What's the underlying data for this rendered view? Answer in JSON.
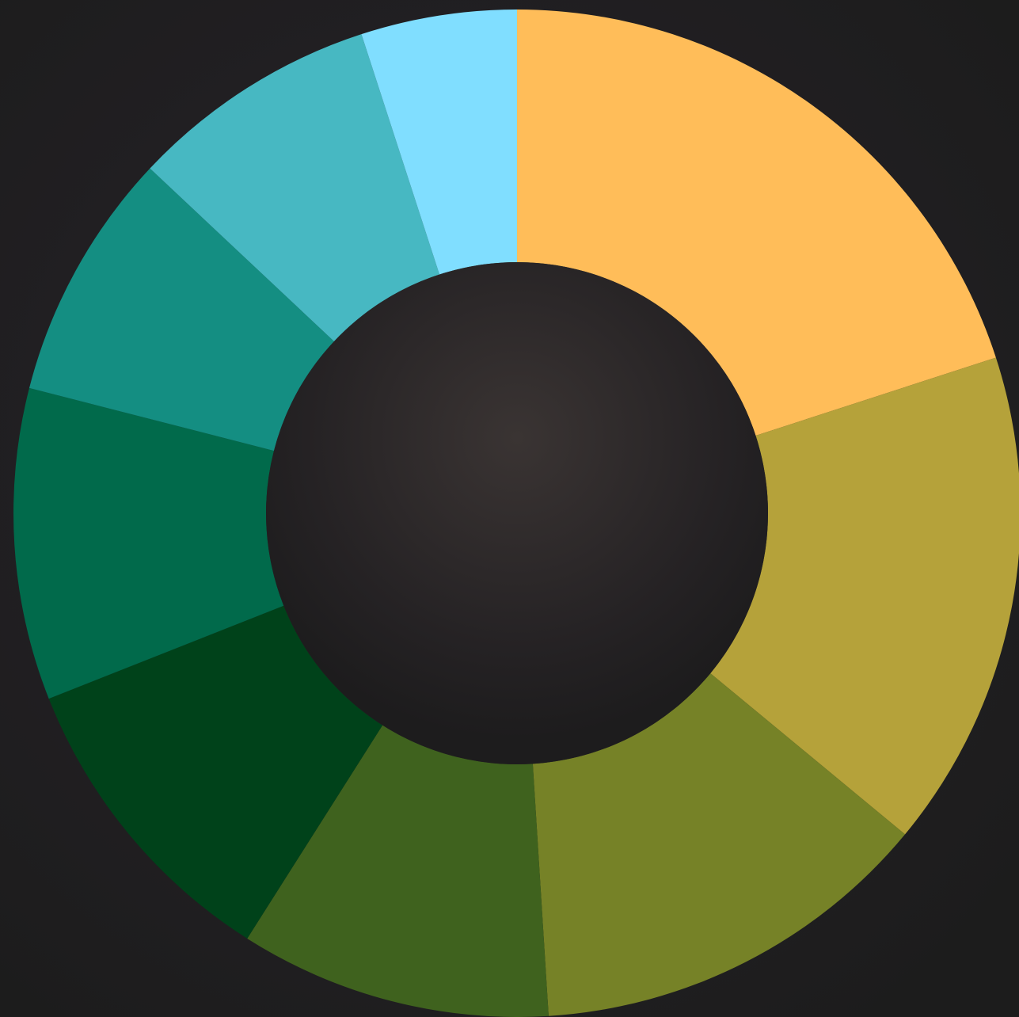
{
  "chart_data": {
    "type": "pie",
    "values": [
      20,
      16,
      13,
      10,
      10,
      10,
      8,
      8,
      5
    ],
    "colors": [
      "#ffbd59",
      "#b5a23a",
      "#768227",
      "#3f621e",
      "#00421a",
      "#016a4b",
      "#148e82",
      "#47b8c2",
      "#80deff"
    ]
  }
}
